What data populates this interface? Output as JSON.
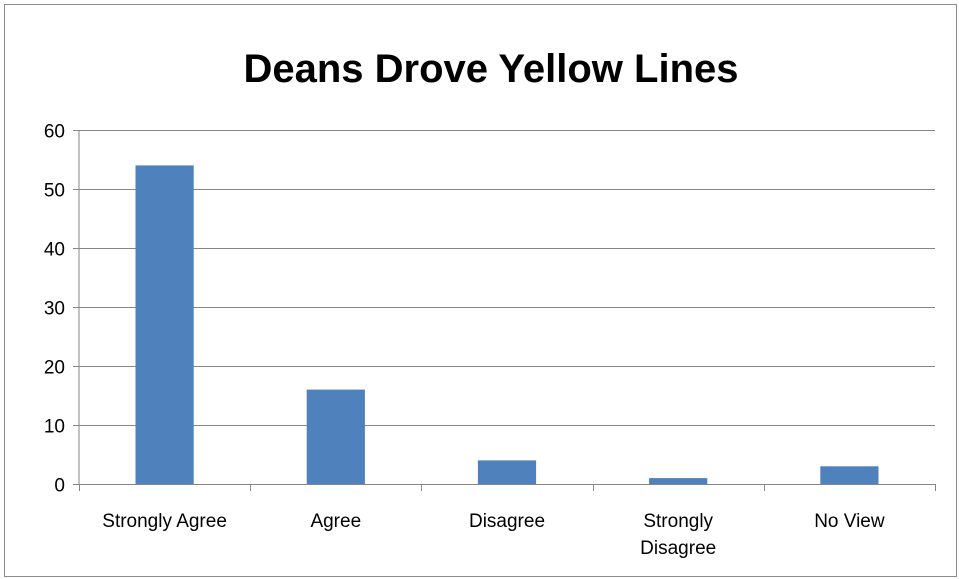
{
  "chart_data": {
    "type": "bar",
    "title": "Deans Drove Yellow Lines",
    "xlabel": "",
    "ylabel": "",
    "categories": [
      [
        "Strongly Agree"
      ],
      [
        "Agree"
      ],
      [
        "Disagree"
      ],
      [
        "Strongly",
        "Disagree"
      ],
      [
        "No View"
      ]
    ],
    "values": [
      54,
      16,
      4,
      1,
      3
    ],
    "ylim": [
      0,
      60
    ],
    "yticks": [
      0,
      10,
      20,
      30,
      40,
      50,
      60
    ],
    "grid": true,
    "legend": "none",
    "colors": {
      "bar": "#4f81bd",
      "grid": "#868686",
      "axis": "#868686"
    }
  }
}
